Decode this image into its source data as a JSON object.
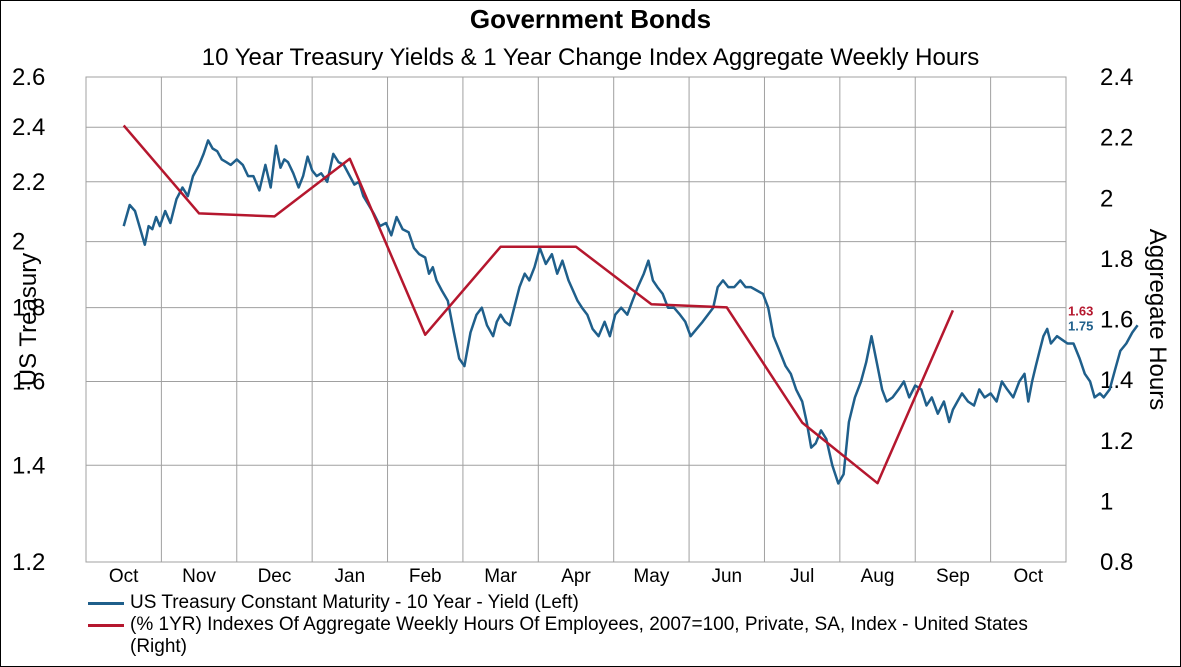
{
  "title": "Government Bonds",
  "subtitle": "10 Year Treasury Yields & 1 Year Change Index Aggregate Weekly Hours",
  "chart_data": {
    "type": "line",
    "title": "Government Bonds",
    "subtitle": "10 Year Treasury Yields & 1 Year Change Index Aggregate Weekly Hours",
    "ylabel_left": "US Treasury",
    "ylabel_right": "Aggregate Hours",
    "x_ticks": [
      "Oct",
      "Nov",
      "Dec",
      "Jan",
      "Feb",
      "Mar",
      "Apr",
      "May",
      "Jun",
      "Jul",
      "Aug",
      "Sep",
      "Oct"
    ],
    "left_axis": {
      "scale": "log",
      "ylim": [
        1.2,
        2.6
      ],
      "ticks": [
        "1.2",
        "1.4",
        "1.6",
        "1.8",
        "2",
        "2.2",
        "2.4",
        "2.6"
      ]
    },
    "right_axis": {
      "scale": "linear",
      "ylim": [
        0.8,
        2.4
      ],
      "ticks": [
        "0.8",
        "1",
        "1.2",
        "1.4",
        "1.6",
        "1.8",
        "2",
        "2.2",
        "2.4"
      ]
    },
    "grid": true,
    "legend_position": "bottom-left",
    "series": [
      {
        "name": "US Treasury Constant Maturity - 10 Year - Yield  (Left)",
        "color": "#1f5f8b",
        "axis": "left",
        "last_label": "1.75",
        "x": [
          0,
          0.08,
          0.15,
          0.22,
          0.28,
          0.33,
          0.38,
          0.43,
          0.48,
          0.55,
          0.62,
          0.7,
          0.78,
          0.85,
          0.92,
          1.0,
          1.06,
          1.12,
          1.18,
          1.24,
          1.3,
          1.36,
          1.42,
          1.5,
          1.58,
          1.65,
          1.72,
          1.8,
          1.88,
          1.95,
          2.02,
          2.08,
          2.13,
          2.18,
          2.25,
          2.32,
          2.38,
          2.44,
          2.5,
          2.56,
          2.62,
          2.7,
          2.78,
          2.85,
          2.92,
          3.0,
          3.06,
          3.12,
          3.18,
          3.25,
          3.32,
          3.4,
          3.48,
          3.55,
          3.62,
          3.7,
          3.78,
          3.85,
          3.92,
          4.0,
          4.05,
          4.1,
          4.15,
          4.22,
          4.3,
          4.38,
          4.45,
          4.52,
          4.6,
          4.68,
          4.75,
          4.82,
          4.9,
          4.95,
          5.0,
          5.06,
          5.12,
          5.18,
          5.25,
          5.32,
          5.38,
          5.45,
          5.52,
          5.6,
          5.68,
          5.75,
          5.82,
          5.9,
          5.96,
          6.02,
          6.08,
          6.15,
          6.22,
          6.3,
          6.38,
          6.45,
          6.52,
          6.6,
          6.68,
          6.75,
          6.82,
          6.9,
          6.96,
          7.02,
          7.08,
          7.15,
          7.22,
          7.3,
          7.38,
          7.45,
          7.52,
          7.6,
          7.68,
          7.75,
          7.82,
          7.88,
          7.95,
          8.02,
          8.1,
          8.18,
          8.25,
          8.32,
          8.4,
          8.48,
          8.55,
          8.62,
          8.7,
          8.78,
          8.85,
          8.92,
          9.0,
          9.06,
          9.12,
          9.18,
          9.25,
          9.32,
          9.4,
          9.48,
          9.55,
          9.62,
          9.7,
          9.78,
          9.85,
          9.92,
          10.0,
          10.06,
          10.12,
          10.2,
          10.28,
          10.35,
          10.42,
          10.5,
          10.58,
          10.65,
          10.72,
          10.8,
          10.88,
          10.95,
          11.0,
          11.06,
          11.12,
          11.2,
          11.28,
          11.35,
          11.42,
          11.5,
          11.58,
          11.65,
          11.72,
          11.8,
          11.88,
          11.95,
          12.0
        ],
        "y": [
          2.05,
          2.12,
          2.1,
          2.04,
          1.99,
          2.05,
          2.04,
          2.08,
          2.05,
          2.1,
          2.06,
          2.14,
          2.18,
          2.15,
          2.22,
          2.26,
          2.3,
          2.35,
          2.32,
          2.31,
          2.28,
          2.27,
          2.26,
          2.28,
          2.26,
          2.22,
          2.22,
          2.17,
          2.26,
          2.18,
          2.33,
          2.25,
          2.28,
          2.27,
          2.23,
          2.18,
          2.22,
          2.29,
          2.24,
          2.22,
          2.23,
          2.2,
          2.3,
          2.27,
          2.26,
          2.22,
          2.19,
          2.2,
          2.15,
          2.12,
          2.09,
          2.05,
          2.06,
          2.02,
          2.08,
          2.04,
          2.03,
          1.98,
          1.96,
          1.95,
          1.9,
          1.92,
          1.88,
          1.85,
          1.82,
          1.73,
          1.66,
          1.64,
          1.73,
          1.78,
          1.8,
          1.75,
          1.72,
          1.76,
          1.78,
          1.76,
          1.75,
          1.8,
          1.86,
          1.9,
          1.88,
          1.92,
          1.98,
          1.93,
          1.96,
          1.9,
          1.94,
          1.88,
          1.85,
          1.82,
          1.8,
          1.78,
          1.74,
          1.72,
          1.76,
          1.72,
          1.78,
          1.8,
          1.78,
          1.82,
          1.86,
          1.9,
          1.94,
          1.88,
          1.86,
          1.84,
          1.8,
          1.8,
          1.78,
          1.76,
          1.72,
          1.74,
          1.76,
          1.78,
          1.8,
          1.86,
          1.88,
          1.86,
          1.86,
          1.88,
          1.86,
          1.86,
          1.85,
          1.84,
          1.8,
          1.72,
          1.68,
          1.64,
          1.62,
          1.58,
          1.55,
          1.5,
          1.44,
          1.45,
          1.48,
          1.46,
          1.4,
          1.36,
          1.38,
          1.5,
          1.56,
          1.6,
          1.65,
          1.72,
          1.64,
          1.58,
          1.55,
          1.56,
          1.58,
          1.6,
          1.56,
          1.59,
          1.58,
          1.54,
          1.56,
          1.52,
          1.55,
          1.5,
          1.53,
          1.55,
          1.57,
          1.55,
          1.54,
          1.58,
          1.56,
          1.57,
          1.55,
          1.6,
          1.58,
          1.56,
          1.6,
          1.62,
          1.55
        ]
      },
      {
        "name": "(% 1YR) Indexes Of Aggregate Weekly Hours Of Employees, 2007=100, Private, SA, Index - United States  (Right)",
        "color": "#b5172e",
        "axis": "right",
        "last_label": "1.63",
        "x": [
          0,
          1,
          2,
          3,
          4,
          5,
          6,
          7,
          8,
          9,
          10,
          11
        ],
        "y": [
          2.24,
          1.95,
          1.94,
          2.13,
          1.55,
          1.84,
          1.84,
          1.65,
          1.64,
          1.26,
          1.06,
          1.63
        ]
      }
    ]
  },
  "treasury_tail": {
    "x": [
      12.0,
      12.05,
      12.1,
      12.15,
      12.2,
      12.25,
      12.3,
      12.38,
      12.45,
      12.52,
      12.6,
      12.68,
      12.75,
      12.82,
      12.88,
      12.95,
      13.0,
      13.08,
      13.15,
      13.22,
      13.3,
      13.38,
      13.45
    ],
    "y": [
      1.55,
      1.6,
      1.64,
      1.68,
      1.72,
      1.74,
      1.7,
      1.72,
      1.71,
      1.7,
      1.7,
      1.66,
      1.62,
      1.6,
      1.56,
      1.57,
      1.56,
      1.58,
      1.63,
      1.68,
      1.7,
      1.73,
      1.75
    ]
  }
}
